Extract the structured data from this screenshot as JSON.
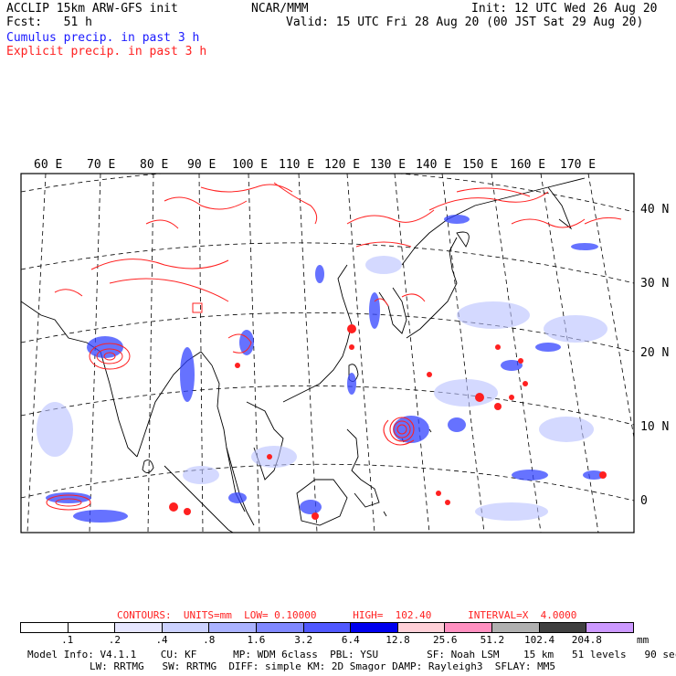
{
  "header": {
    "title": "ACCLIP 15km ARW-GFS init",
    "forecast": "Fcst:   51 h",
    "center": "NCAR/MMM",
    "init": "Init: 12 UTC Wed 26 Aug 20",
    "valid": "Valid: 15 UTC Fri 28 Aug 20 (00 JST Sat 29 Aug 20)",
    "legend_cumulus": "Cumulus precip. in past 3 h",
    "legend_explicit": "Explicit precip. in past 3 h"
  },
  "map": {
    "lon_labels": [
      "60 E",
      "70 E",
      "80 E",
      "90 E",
      "100 E",
      "110 E",
      "120 E",
      "130 E",
      "140 E",
      "150 E",
      "160 E",
      "170 E"
    ],
    "lat_labels": [
      "40 N",
      "30 N",
      "20 N",
      "10 N",
      "0"
    ],
    "colors": {
      "cumulus": "#1a1aff",
      "explicit": "#ff2020",
      "coast": "#000000",
      "grid": "#000000"
    }
  },
  "contours": {
    "label": "CONTOURS:  UNITS=mm  LOW= 0.10000      HIGH=  102.40      INTERVAL=X  4.0000"
  },
  "colorbar": {
    "ticks": [
      ".1",
      ".2",
      ".4",
      ".8",
      "1.6",
      "3.2",
      "6.4",
      "12.8",
      "25.6",
      "51.2",
      "102.4",
      "204.8"
    ],
    "unit": "mm",
    "colors": [
      "#ffffff",
      "#ffffff",
      "#e6e6ff",
      "#ccd2ff",
      "#aab2ff",
      "#8088ff",
      "#5058ff",
      "#0000ee",
      "#ffd0d8",
      "#ff90c0",
      "#b0b0b0",
      "#404040",
      "#cc99ff"
    ]
  },
  "model_info": {
    "line1": "Model Info: V4.1.1    CU: KF      MP: WDM 6class  PBL: YSU        SF: Noah LSM    15 km   51 levels   90 sec",
    "line2": "LW: RRTMG   SW: RRTMG  DIFF: simple KM: 2D Smagor DAMP: Rayleigh3  SFLAY: MM5"
  }
}
